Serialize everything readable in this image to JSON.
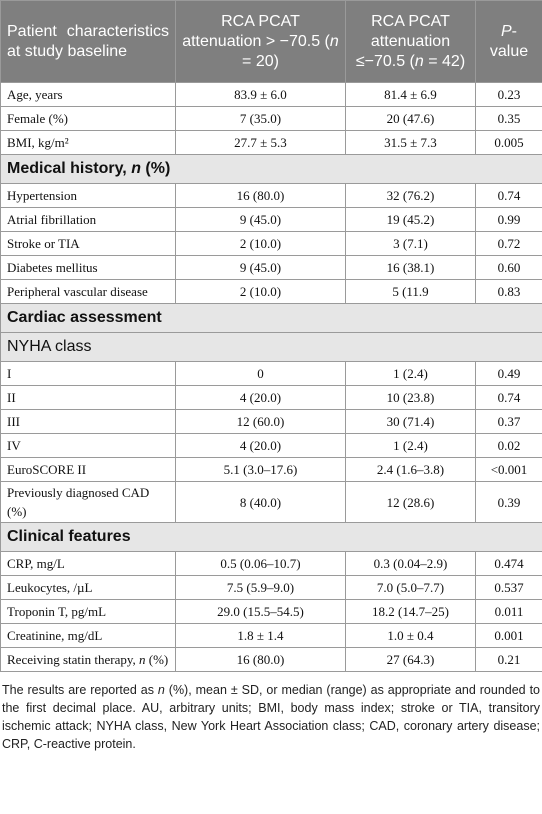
{
  "table": {
    "header": [
      "Patient characteristics at study baseline",
      [
        "RCA PCAT attenuation > −70.5 (",
        {
          "italic": "n"
        },
        " = 20)"
      ],
      [
        "RCA PCAT attenuation ≤−70.5 (",
        {
          "italic": "n"
        },
        " = 42)"
      ],
      [
        {
          "italic": "P"
        },
        "-value"
      ]
    ],
    "groups": [
      {
        "rows": [
          [
            "Age, years",
            "83.9 ± 6.0",
            "81.4 ± 6.9",
            "0.23"
          ],
          [
            "Female (%)",
            "7 (35.0)",
            "20 (47.6)",
            "0.35"
          ],
          [
            "BMI, kg/m²",
            "27.7 ± 5.3",
            "31.5 ± 7.3",
            "0.005"
          ]
        ]
      },
      {
        "heading": [
          "Medical history, ",
          {
            "italic": "n"
          },
          " (%)"
        ],
        "bold": true,
        "rows": [
          [
            "Hypertension",
            "16 (80.0)",
            "32 (76.2)",
            "0.74"
          ],
          [
            "Atrial fibrillation",
            "9 (45.0)",
            "19 (45.2)",
            "0.99"
          ],
          [
            "Stroke or TIA",
            "2 (10.0)",
            "3 (7.1)",
            "0.72"
          ],
          [
            "Diabetes mellitus",
            "9 (45.0)",
            "16 (38.1)",
            "0.60"
          ],
          [
            "Peripheral vascular disease",
            "2 (10.0)",
            "5 (11.9",
            "0.83"
          ]
        ]
      },
      {
        "heading": "Cardiac assessment",
        "bold": true,
        "rows": []
      },
      {
        "heading": "NYHA class",
        "bold": false,
        "rows": [
          [
            "I",
            "0",
            "1 (2.4)",
            "0.49"
          ],
          [
            "II",
            "4 (20.0)",
            "10 (23.8)",
            "0.74"
          ],
          [
            "III",
            "12 (60.0)",
            "30 (71.4)",
            "0.37"
          ],
          [
            "IV",
            "4 (20.0)",
            "1 (2.4)",
            "0.02"
          ],
          [
            "EuroSCORE II",
            "5.1 (3.0–17.6)",
            "2.4 (1.6–3.8)",
            "<0.001"
          ],
          [
            "Previously diagnosed CAD (%)",
            "8 (40.0)",
            "12 (28.6)",
            "0.39"
          ]
        ]
      },
      {
        "heading": "Clinical features",
        "bold": true,
        "rows": [
          [
            "CRP, mg/L",
            "0.5 (0.06–10.7)",
            "0.3 (0.04–2.9)",
            "0.474"
          ],
          [
            "Leukocytes, /µL",
            "7.5 (5.9–9.0)",
            "7.0 (5.0–7.7)",
            "0.537"
          ],
          [
            "Troponin T, pg/mL",
            "29.0 (15.5–54.5)",
            "18.2 (14.7–25)",
            "0.011"
          ],
          [
            "Creatinine, mg/dL",
            "1.8 ± 1.4",
            "1.0 ± 0.4",
            "0.001"
          ],
          [
            [
              "Receiving statin therapy, ",
              {
                "italic": "n"
              },
              " (%)"
            ],
            "16 (80.0)",
            "27 (64.3)",
            "0.21"
          ]
        ]
      }
    ],
    "footnote": [
      "The results are reported as ",
      {
        "italic": "n"
      },
      " (%), mean ± SD, or median (range) as appropriate and rounded to the first decimal place. AU, arbitrary units; BMI, body mass index; stroke or TIA, transitory ischemic attack; NYHA class, New York Heart Association class; CAD, coronary artery disease; CRP, C-reactive protein."
    ]
  }
}
